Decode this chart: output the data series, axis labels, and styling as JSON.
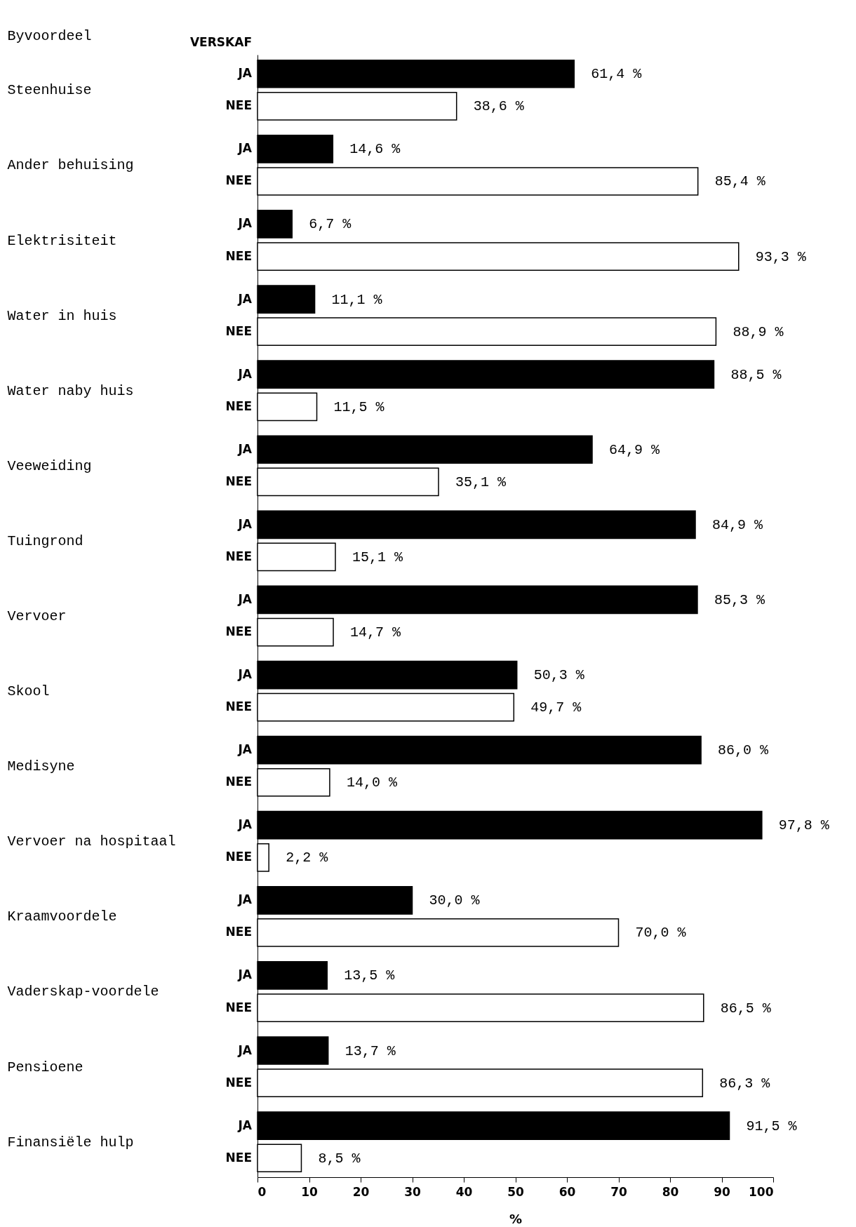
{
  "chart_data": {
    "type": "bar",
    "orientation": "horizontal",
    "ylabel": "Byvoordeel",
    "legend_title": "VERSKAF",
    "xlabel": "%",
    "xlim": [
      0,
      100
    ],
    "xticks": [
      0,
      10,
      20,
      30,
      40,
      50,
      60,
      70,
      80,
      90,
      100
    ],
    "legend": false,
    "categories": [
      "Steenhuise",
      "Ander behuising",
      "Elektrisiteit",
      "Water in huis",
      "Water naby huis",
      "Veeweiding",
      "Tuingrond",
      "Vervoer",
      "Skool",
      "Medisyne",
      "Vervoer na hospitaal",
      "Kraamvoordele",
      "Vaderskap-voordele",
      "Pensioene",
      "Finansiële hulp"
    ],
    "series": [
      {
        "name": "JA",
        "color": "#000000",
        "values": [
          61.4,
          14.6,
          6.7,
          11.1,
          88.5,
          64.9,
          84.9,
          85.3,
          50.3,
          86.0,
          97.8,
          30.0,
          13.5,
          13.7,
          91.5
        ],
        "value_labels": [
          "61,4 %",
          "14,6 %",
          "6,7 %",
          "11,1 %",
          "88,5 %",
          "64,9 %",
          "84,9 %",
          "85,3 %",
          "50,3 %",
          "86,0 %",
          "97,8 %",
          "30,0 %",
          "13,5 %",
          "13,7 %",
          "91,5 %"
        ]
      },
      {
        "name": "NEE",
        "color": "#ffffff",
        "values": [
          38.6,
          85.4,
          93.3,
          88.9,
          11.5,
          35.1,
          15.1,
          14.7,
          49.7,
          14.0,
          2.2,
          70.0,
          86.5,
          86.3,
          8.5
        ],
        "value_labels": [
          "38,6 %",
          "85,4 %",
          "93,3 %",
          "88,9 %",
          "11,5 %",
          "35,1 %",
          "15,1 %",
          "14,7 %",
          "49,7 %",
          "14,0 %",
          "2,2 %",
          "70,0 %",
          "86,5 %",
          "86,3 %",
          "8,5 %"
        ]
      }
    ]
  }
}
